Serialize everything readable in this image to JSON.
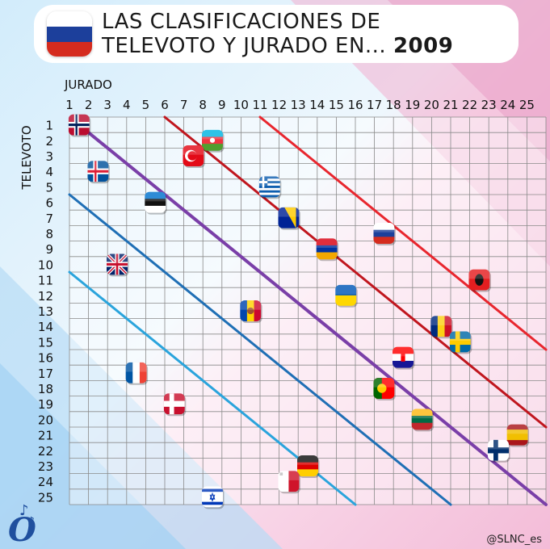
{
  "title": {
    "line1": "LAS CLASIFICACIONES DE",
    "line2_prefix": "TELEVOTO Y JURADO EN... ",
    "line2_year": "2009",
    "flag": "russia-flag"
  },
  "watermark": "@SLNC_es",
  "logo": "music-note-o-logo",
  "colors": {
    "diagonal_main": "#7a3fa8",
    "diag_red_dark": "#c0161e",
    "diag_red": "#e8262e",
    "diag_blue_dark": "#1f6fb5",
    "diag_blue_light": "#2aa4dc",
    "grid": "#8a8a8a"
  },
  "chart_data": {
    "type": "scatter",
    "xlabel": "JURADO",
    "ylabel": "TELEVOTO",
    "x_ticks": [
      "1",
      "2",
      "3",
      "4",
      "5",
      "6",
      "7",
      "8",
      "9",
      "10",
      "11",
      "12",
      "13",
      "14",
      "15",
      "16",
      "17",
      "18",
      "19",
      "20",
      "21",
      "22",
      "23",
      "24",
      "25"
    ],
    "y_ticks": [
      "1",
      "2",
      "3",
      "4",
      "5",
      "6",
      "7",
      "8",
      "9",
      "10",
      "11",
      "12",
      "13",
      "14",
      "15",
      "16",
      "17",
      "18",
      "19",
      "20",
      "21",
      "22",
      "23",
      "24",
      "25"
    ],
    "xlim": [
      1,
      25
    ],
    "ylim": [
      1,
      25
    ],
    "grid": true,
    "reference_lines": [
      {
        "offset": 0,
        "color": "#7a3fa8"
      },
      {
        "offset": -5,
        "color": "#c0161e"
      },
      {
        "offset": -10,
        "color": "#e8262e"
      },
      {
        "offset": 5,
        "color": "#1f6fb5"
      },
      {
        "offset": 10,
        "color": "#2aa4dc"
      }
    ],
    "points": [
      {
        "country": "Norway",
        "jury": 1,
        "televote": 1,
        "flag": "norway-flag"
      },
      {
        "country": "Azerbaijan",
        "jury": 8,
        "televote": 2,
        "flag": "azerbaijan-flag"
      },
      {
        "country": "Turkey",
        "jury": 7,
        "televote": 3,
        "flag": "turkey-flag"
      },
      {
        "country": "Iceland",
        "jury": 2,
        "televote": 4,
        "flag": "iceland-flag"
      },
      {
        "country": "Greece",
        "jury": 11,
        "televote": 5,
        "flag": "greece-flag"
      },
      {
        "country": "Estonia",
        "jury": 5,
        "televote": 6,
        "flag": "estonia-flag"
      },
      {
        "country": "Bosnia and Herzegovina",
        "jury": 12,
        "televote": 7,
        "flag": "bosnia-flag"
      },
      {
        "country": "Russia",
        "jury": 17,
        "televote": 8,
        "flag": "russia-flag"
      },
      {
        "country": "Armenia",
        "jury": 14,
        "televote": 9,
        "flag": "armenia-flag"
      },
      {
        "country": "United Kingdom",
        "jury": 3,
        "televote": 10,
        "flag": "uk-flag"
      },
      {
        "country": "Albania",
        "jury": 22,
        "televote": 11,
        "flag": "albania-flag"
      },
      {
        "country": "Ukraine",
        "jury": 15,
        "televote": 12,
        "flag": "ukraine-flag"
      },
      {
        "country": "Moldova",
        "jury": 10,
        "televote": 13,
        "flag": "moldova-flag"
      },
      {
        "country": "Romania",
        "jury": 20,
        "televote": 14,
        "flag": "romania-flag"
      },
      {
        "country": "Sweden",
        "jury": 21,
        "televote": 15,
        "flag": "sweden-flag"
      },
      {
        "country": "Croatia",
        "jury": 18,
        "televote": 16,
        "flag": "croatia-flag"
      },
      {
        "country": "France",
        "jury": 4,
        "televote": 17,
        "flag": "france-flag"
      },
      {
        "country": "Portugal",
        "jury": 17,
        "televote": 18,
        "flag": "portugal-flag"
      },
      {
        "country": "Denmark",
        "jury": 6,
        "televote": 19,
        "flag": "denmark-flag"
      },
      {
        "country": "Lithuania",
        "jury": 19,
        "televote": 20,
        "flag": "lithuania-flag"
      },
      {
        "country": "Spain",
        "jury": 24,
        "televote": 21,
        "flag": "spain-flag"
      },
      {
        "country": "Finland",
        "jury": 23,
        "televote": 22,
        "flag": "finland-flag"
      },
      {
        "country": "Germany",
        "jury": 13,
        "televote": 23,
        "flag": "germany-flag"
      },
      {
        "country": "Malta",
        "jury": 12,
        "televote": 24,
        "flag": "malta-flag"
      },
      {
        "country": "Israel",
        "jury": 8,
        "televote": 25,
        "flag": "israel-flag"
      }
    ]
  }
}
